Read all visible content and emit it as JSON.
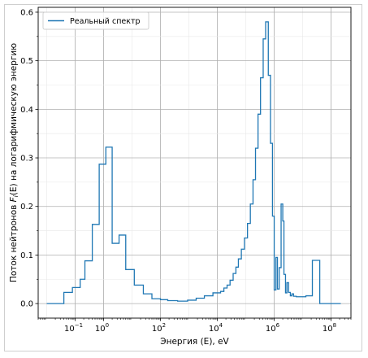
{
  "chart_data": {
    "type": "line",
    "drawstyle": "steps-post",
    "xscale": "log",
    "xlim": [
      0.005,
      500000000
    ],
    "ylim": [
      -0.03,
      0.61
    ],
    "xlabel": "Энергия (E), eV",
    "ylabel": "Поток нейтронов F_i(E) на логарифмическую энергию",
    "ylabel_prefix": "Поток нейтронов ",
    "ylabel_var": "F",
    "ylabel_sub": "i",
    "ylabel_suffix": "(E) на логарифмическую энергию",
    "grid": true,
    "legend_position": "top-left",
    "x_ticks": [
      {
        "value": 0.1,
        "base": "10",
        "exp": "−1"
      },
      {
        "value": 1,
        "base": "10",
        "exp": "0"
      },
      {
        "value": 100,
        "base": "10",
        "exp": "2"
      },
      {
        "value": 10000,
        "base": "10",
        "exp": "4"
      },
      {
        "value": 1000000,
        "base": "10",
        "exp": "6"
      },
      {
        "value": 100000000,
        "base": "10",
        "exp": "8"
      }
    ],
    "y_ticks": [
      "0.0",
      "0.1",
      "0.2",
      "0.3",
      "0.4",
      "0.5",
      "0.6"
    ],
    "series": [
      {
        "name": "Реальный спектр",
        "color": "#1f77b4",
        "points": [
          [
            0.01,
            0.0
          ],
          [
            0.04,
            0.023
          ],
          [
            0.08,
            0.033
          ],
          [
            0.15,
            0.05
          ],
          [
            0.22,
            0.088
          ],
          [
            0.4,
            0.163
          ],
          [
            0.7,
            0.287
          ],
          [
            1.2,
            0.322
          ],
          [
            2.0,
            0.124
          ],
          [
            3.5,
            0.141
          ],
          [
            6.0,
            0.07
          ],
          [
            12,
            0.038
          ],
          [
            25,
            0.02
          ],
          [
            50,
            0.01
          ],
          [
            100,
            0.008
          ],
          [
            180,
            0.006
          ],
          [
            400,
            0.005
          ],
          [
            900,
            0.007
          ],
          [
            1800,
            0.011
          ],
          [
            3500,
            0.016
          ],
          [
            7000,
            0.022
          ],
          [
            13000,
            0.025
          ],
          [
            17000,
            0.032
          ],
          [
            22000,
            0.038
          ],
          [
            28000,
            0.048
          ],
          [
            36000,
            0.062
          ],
          [
            45000,
            0.075
          ],
          [
            55000,
            0.092
          ],
          [
            70000,
            0.112
          ],
          [
            90000,
            0.135
          ],
          [
            115000,
            0.165
          ],
          [
            145000,
            0.205
          ],
          [
            180000,
            0.255
          ],
          [
            220000,
            0.32
          ],
          [
            270000,
            0.39
          ],
          [
            330000,
            0.465
          ],
          [
            410000,
            0.545
          ],
          [
            500000,
            0.58
          ],
          [
            620000,
            0.47
          ],
          [
            740000,
            0.33
          ],
          [
            870000,
            0.18
          ],
          [
            1000000,
            0.028
          ],
          [
            1150000,
            0.095
          ],
          [
            1300000,
            0.03
          ],
          [
            1500000,
            0.074
          ],
          [
            1750000,
            0.205
          ],
          [
            2000000,
            0.17
          ],
          [
            2200000,
            0.06
          ],
          [
            2500000,
            0.022
          ],
          [
            2800000,
            0.043
          ],
          [
            3200000,
            0.023
          ],
          [
            3700000,
            0.016
          ],
          [
            4200000,
            0.02
          ],
          [
            4800000,
            0.015
          ],
          [
            6000000,
            0.014
          ],
          [
            9000000,
            0.014
          ],
          [
            13000000,
            0.016
          ],
          [
            22000000,
            0.089
          ],
          [
            40000000,
            0.0
          ],
          [
            220000000,
            0.0
          ]
        ]
      }
    ]
  }
}
